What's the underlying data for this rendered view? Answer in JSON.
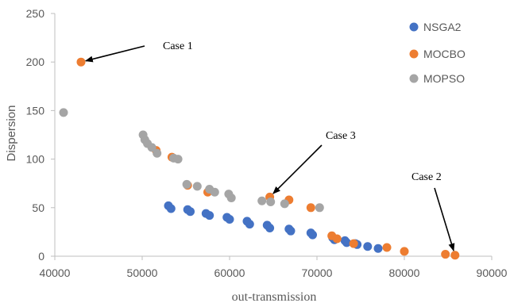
{
  "chart_data": {
    "type": "scatter",
    "xlabel": "out-transmission",
    "ylabel": "Dispersion",
    "xlim": [
      40000,
      90000
    ],
    "ylim": [
      0,
      250
    ],
    "x_ticks": [
      "40000",
      "50000",
      "60000",
      "70000",
      "80000",
      "90000"
    ],
    "y_ticks": [
      "0",
      "50",
      "100",
      "150",
      "200",
      "250"
    ],
    "grid": false,
    "legend_position": "right",
    "series": [
      {
        "name": "NSGA2",
        "color": "#4472C4",
        "points": [
          [
            53000,
            52
          ],
          [
            53300,
            49
          ],
          [
            55200,
            48
          ],
          [
            55500,
            46
          ],
          [
            57300,
            44
          ],
          [
            57700,
            42
          ],
          [
            59700,
            40
          ],
          [
            60000,
            38
          ],
          [
            62000,
            36
          ],
          [
            62300,
            33
          ],
          [
            64300,
            32
          ],
          [
            64600,
            29
          ],
          [
            66800,
            28
          ],
          [
            67000,
            26
          ],
          [
            69300,
            24
          ],
          [
            69500,
            22
          ],
          [
            71800,
            19
          ],
          [
            72000,
            17
          ],
          [
            73200,
            16
          ],
          [
            73400,
            14
          ],
          [
            74400,
            13
          ],
          [
            74600,
            12
          ],
          [
            75800,
            10
          ],
          [
            77000,
            8
          ]
        ]
      },
      {
        "name": "MOCBO",
        "color": "#ED7D31",
        "points": [
          [
            43000,
            200
          ],
          [
            51600,
            109
          ],
          [
            53400,
            102
          ],
          [
            55200,
            73
          ],
          [
            57500,
            66
          ],
          [
            64600,
            61
          ],
          [
            66800,
            58
          ],
          [
            69300,
            50
          ],
          [
            71700,
            21
          ],
          [
            72300,
            18
          ],
          [
            74200,
            13
          ],
          [
            78000,
            9
          ],
          [
            80000,
            5
          ],
          [
            84700,
            2
          ],
          [
            85800,
            1
          ]
        ]
      },
      {
        "name": "MOPSO",
        "color": "#A5A5A5",
        "points": [
          [
            41000,
            148
          ],
          [
            50100,
            125
          ],
          [
            50300,
            120
          ],
          [
            50600,
            116
          ],
          [
            51100,
            112
          ],
          [
            51700,
            106
          ],
          [
            53600,
            101
          ],
          [
            54100,
            100
          ],
          [
            55100,
            74
          ],
          [
            56300,
            72
          ],
          [
            57700,
            69
          ],
          [
            58300,
            66
          ],
          [
            59900,
            64
          ],
          [
            60200,
            60
          ],
          [
            63700,
            57
          ],
          [
            64700,
            56
          ],
          [
            66300,
            54
          ],
          [
            70300,
            50
          ]
        ]
      }
    ],
    "annotations": [
      {
        "text": "Case 1",
        "target": [
          43000,
          200
        ]
      },
      {
        "text": "Case 3",
        "target": [
          64600,
          61
        ]
      },
      {
        "text": "Case 2",
        "target": [
          85800,
          1
        ]
      }
    ]
  }
}
